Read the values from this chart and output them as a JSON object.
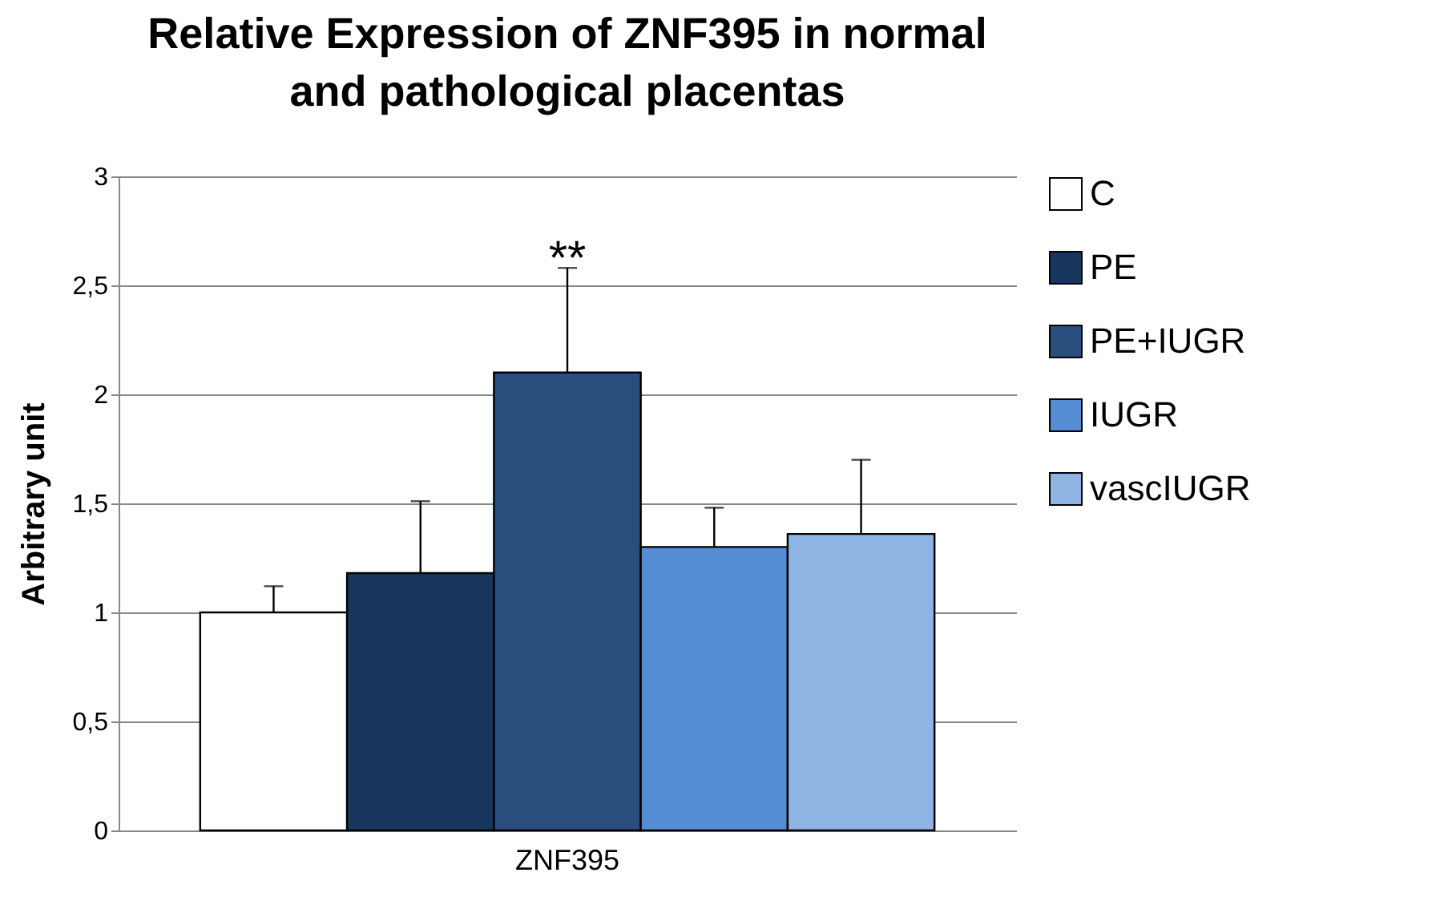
{
  "chart_data": {
    "type": "bar",
    "title": "Relative Expression of ZNF395 in normal and pathological placentas",
    "ylabel": "Arbitrary unit",
    "categories": [
      "ZNF395"
    ],
    "series": [
      {
        "name": "C",
        "color": "#ffffff",
        "values": [
          1.0
        ],
        "errors": [
          [
            1.0,
            1.12
          ]
        ]
      },
      {
        "name": "PE",
        "color": "#17375e",
        "values": [
          1.18
        ],
        "errors": [
          [
            1.18,
            1.51
          ]
        ]
      },
      {
        "name": "PE+IUGR",
        "color": "#2a4f7f",
        "values": [
          2.1
        ],
        "errors": [
          [
            2.1,
            2.58
          ]
        ]
      },
      {
        "name": "IUGR",
        "color": "#558ed5",
        "values": [
          1.3
        ],
        "errors": [
          [
            1.3,
            1.48
          ]
        ]
      },
      {
        "name": "vascIUGR",
        "color": "#8db4e2",
        "values": [
          1.36
        ],
        "errors": [
          [
            1.36,
            1.7
          ]
        ]
      }
    ],
    "ylim": [
      0,
      3
    ],
    "yticks": [
      {
        "value": 0,
        "label": "0"
      },
      {
        "value": 0.5,
        "label": "0,5"
      },
      {
        "value": 1,
        "label": "1"
      },
      {
        "value": 1.5,
        "label": "1,5"
      },
      {
        "value": 2,
        "label": "2"
      },
      {
        "value": 2.5,
        "label": "2,5"
      },
      {
        "value": 3,
        "label": "3"
      }
    ],
    "grid": "y",
    "legend": "right",
    "annotations": [
      "**"
    ]
  }
}
